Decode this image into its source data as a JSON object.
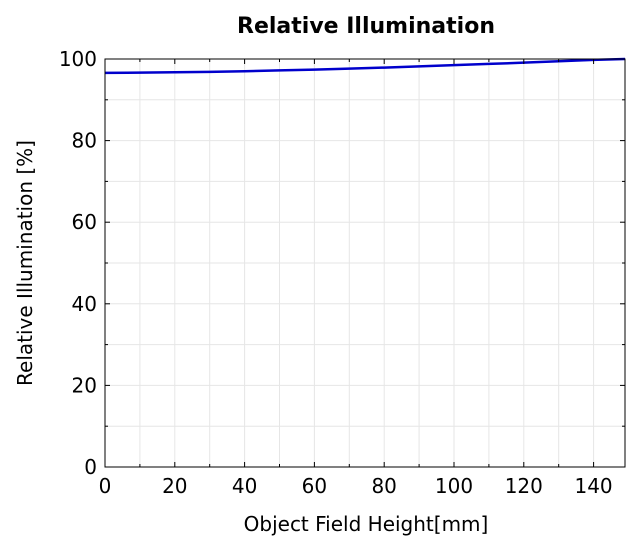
{
  "chart_data": {
    "type": "line",
    "title": "Relative Illumination",
    "xlabel": "Object Field Height[mm]",
    "ylabel": "Relative Illumination [%]",
    "xlim": [
      0,
      149
    ],
    "ylim": [
      0,
      100
    ],
    "x_ticks": [
      0,
      20,
      40,
      60,
      80,
      100,
      120,
      140
    ],
    "y_ticks": [
      0,
      20,
      40,
      60,
      80,
      100
    ],
    "x_minor_ticks": [
      10,
      30,
      50,
      70,
      90,
      110,
      130
    ],
    "y_minor_ticks": [
      10,
      30,
      50,
      70,
      90
    ],
    "grid": true,
    "series": [
      {
        "color": "#0000cc",
        "x": [
          0,
          10,
          20,
          30,
          40,
          50,
          60,
          70,
          80,
          90,
          100,
          110,
          120,
          130,
          140,
          149
        ],
        "y": [
          96.6,
          96.65,
          96.75,
          96.85,
          97.0,
          97.2,
          97.4,
          97.65,
          97.9,
          98.2,
          98.5,
          98.8,
          99.1,
          99.45,
          99.8,
          100.0
        ]
      }
    ]
  }
}
